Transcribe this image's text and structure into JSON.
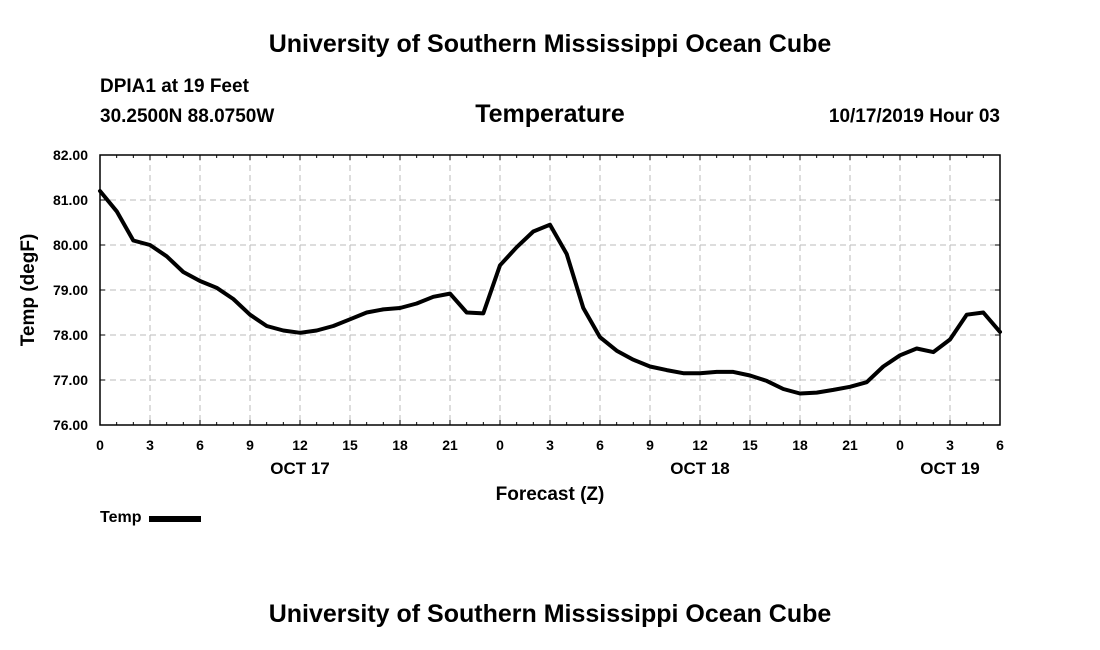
{
  "header": {
    "title": "University of Southern Mississippi Ocean Cube",
    "station": "DPIA1 at 19 Feet",
    "coordinates": "30.2500N 88.0750W",
    "variable": "Temperature",
    "datetime": "10/17/2019 Hour 03"
  },
  "footer": {
    "title": "University of Southern Mississippi Ocean Cube"
  },
  "chart_data": {
    "type": "line",
    "title": "Temperature",
    "xlabel": "Forecast (Z)",
    "ylabel": "Temp (degF)",
    "xlim": [
      0,
      54
    ],
    "ylim": [
      76,
      82
    ],
    "grid": true,
    "x_ticks": [
      0,
      3,
      6,
      9,
      12,
      15,
      18,
      21,
      24,
      27,
      30,
      33,
      36,
      39,
      42,
      45,
      48,
      51,
      54
    ],
    "x_tick_labels": [
      "0",
      "3",
      "6",
      "9",
      "12",
      "15",
      "18",
      "21",
      "0",
      "3",
      "6",
      "9",
      "12",
      "15",
      "18",
      "21",
      "0",
      "3",
      "6"
    ],
    "y_ticks": [
      76,
      77,
      78,
      79,
      80,
      81,
      82
    ],
    "y_tick_labels": [
      "76.00",
      "77.00",
      "78.00",
      "79.00",
      "80.00",
      "81.00",
      "82.00"
    ],
    "date_labels": [
      {
        "label": "OCT 17",
        "x": 12
      },
      {
        "label": "OCT 18",
        "x": 36
      },
      {
        "label": "OCT 19",
        "x": 51
      }
    ],
    "legend": [
      {
        "label": "Temp",
        "position": "bottom-left"
      }
    ],
    "series": [
      {
        "name": "Temp",
        "x": [
          0,
          1,
          2,
          3,
          4,
          5,
          6,
          7,
          8,
          9,
          10,
          11,
          12,
          13,
          14,
          15,
          16,
          17,
          18,
          19,
          20,
          21,
          22,
          23,
          24,
          25,
          26,
          27,
          28,
          29,
          30,
          31,
          32,
          33,
          34,
          35,
          36,
          37,
          38,
          39,
          40,
          41,
          42,
          43,
          44,
          45,
          46,
          47,
          48,
          49,
          50,
          51,
          52,
          53,
          54
        ],
        "values": [
          81.2,
          80.75,
          80.1,
          80.0,
          79.75,
          79.4,
          79.2,
          79.05,
          78.8,
          78.45,
          78.2,
          78.1,
          78.05,
          78.1,
          78.2,
          78.35,
          78.5,
          78.57,
          78.6,
          78.7,
          78.85,
          78.92,
          78.5,
          78.48,
          79.55,
          79.95,
          80.3,
          80.45,
          79.8,
          78.6,
          77.95,
          77.65,
          77.45,
          77.3,
          77.22,
          77.15,
          77.15,
          77.18,
          77.18,
          77.1,
          76.98,
          76.8,
          76.7,
          76.72,
          76.78,
          76.85,
          76.95,
          77.3,
          77.55,
          77.7,
          77.62,
          77.9,
          78.45,
          78.5,
          78.07
        ]
      }
    ]
  }
}
